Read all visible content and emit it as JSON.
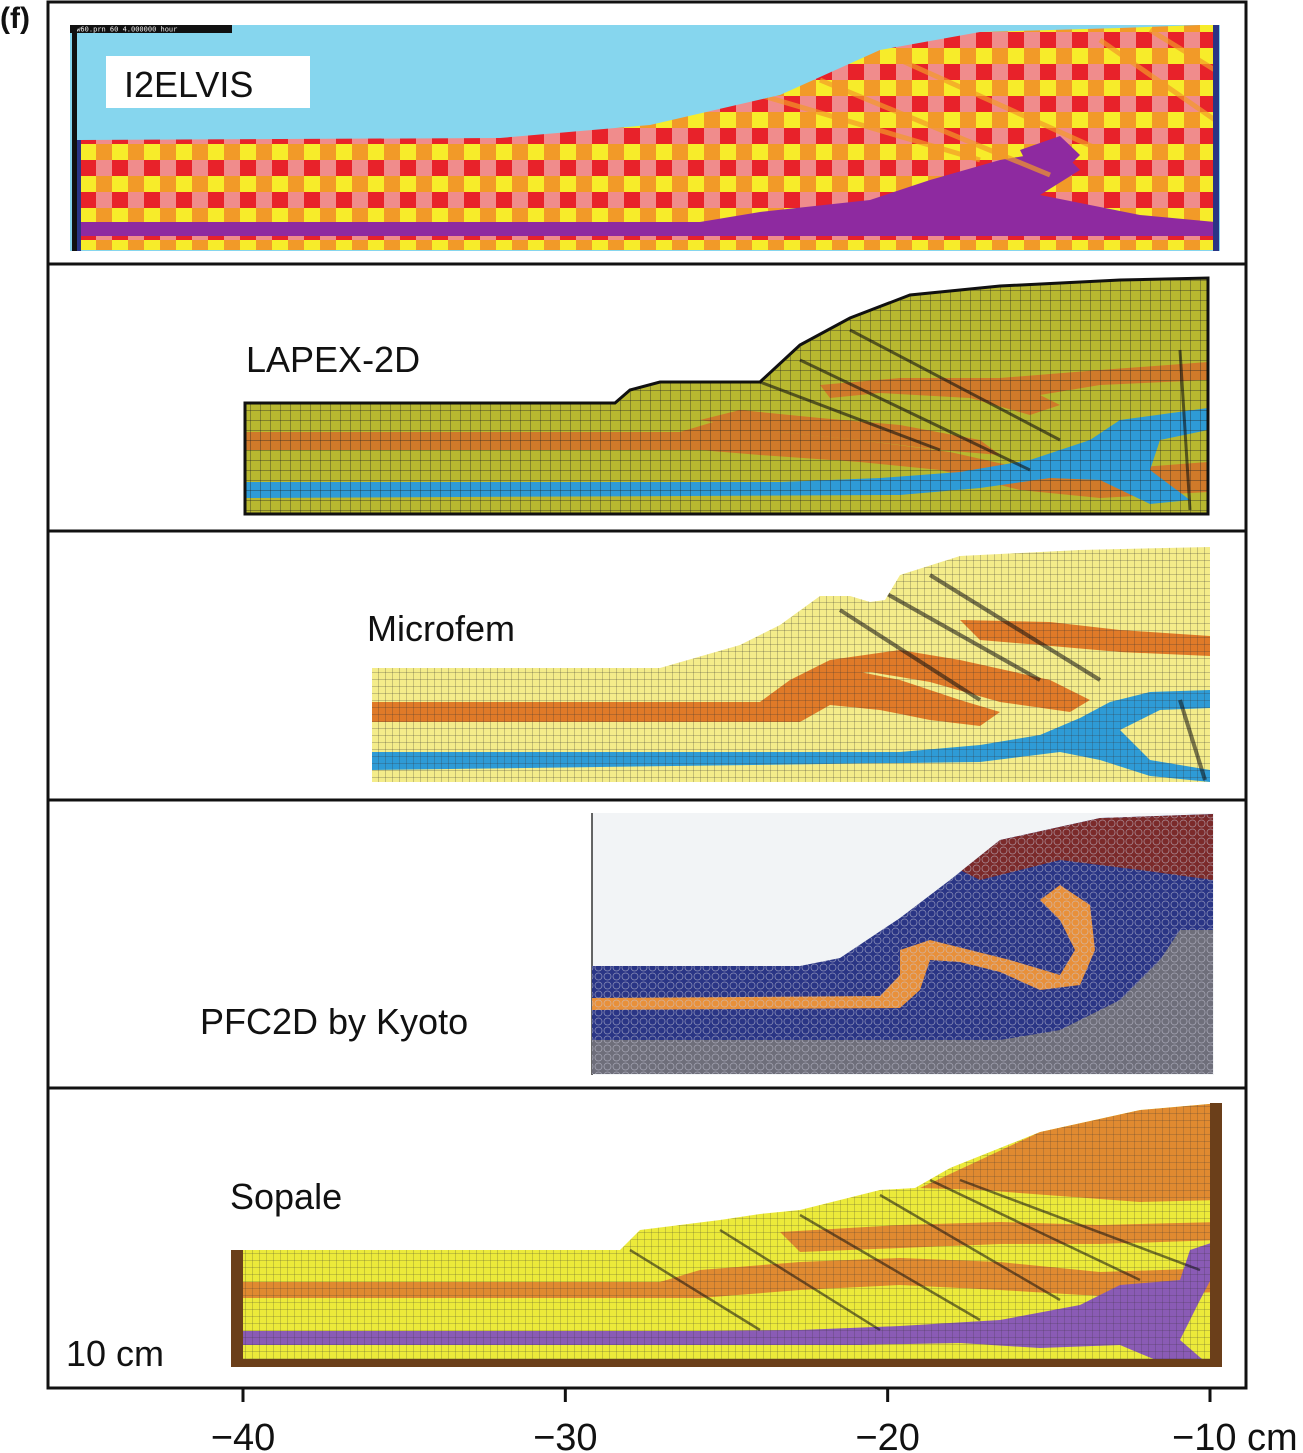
{
  "panel_letter": "(f)",
  "top_header_text": "mw60.prn    60    4.000000 hour",
  "panels": [
    {
      "label": "I2ELVIS"
    },
    {
      "label": "LAPEX-2D"
    },
    {
      "label": "Microfem"
    },
    {
      "label": "PFC2D by Kyoto"
    },
    {
      "label": "Sopale"
    }
  ],
  "scale_bar_label": "10 cm",
  "x_axis": {
    "ticks": [
      {
        "value": -40,
        "label": "−40"
      },
      {
        "value": -30,
        "label": "−30"
      },
      {
        "value": -20,
        "label": "−20"
      },
      {
        "value": -10,
        "label": "−10 cm"
      }
    ]
  },
  "colors": {
    "sky": "#86d6ee",
    "red": "#e8222a",
    "pink": "#f08c8c",
    "yellow": "#f7ec2a",
    "orange": "#f29a28",
    "purple": "#8e2aa0",
    "olive": "#b8b830",
    "blue": "#2e9bd6",
    "cream": "#f4ec8a",
    "navy": "#2a3585",
    "maroon": "#7b2a2a",
    "brown": "#6b3f1a",
    "sopale_yellow": "#ecea3a",
    "sopale_purple": "#8a5bb5"
  }
}
